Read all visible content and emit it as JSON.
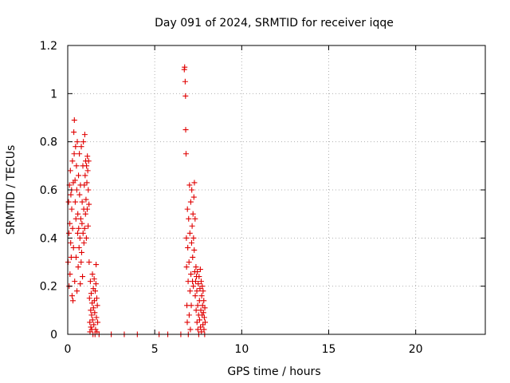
{
  "chart_data": {
    "type": "scatter",
    "title": "Day 091 of 2024, SRMTID for receiver iqqe",
    "xlabel": "GPS time / hours",
    "ylabel": "SRMTID / TECUs",
    "xlim": [
      0,
      24
    ],
    "ylim": [
      0,
      1.2
    ],
    "xticks": [
      0,
      5,
      10,
      15,
      20
    ],
    "xtick_labels": [
      "0",
      "5",
      "10",
      "15",
      "20"
    ],
    "yticks": [
      0,
      0.2,
      0.4,
      0.6,
      0.8,
      1.0,
      1.2
    ],
    "ytick_labels": [
      "0",
      "0.2",
      "0.4",
      "0.6",
      "0.8",
      "1",
      "1.2"
    ],
    "grid": true,
    "marker": "+",
    "colors": {
      "series": "#e00000",
      "grid": "#b0b0b0"
    },
    "series": [
      {
        "name": "SRMTID",
        "points": [
          [
            0.02,
            0.3
          ],
          [
            0.05,
            0.55
          ],
          [
            0.07,
            0.42
          ],
          [
            0.08,
            0.2
          ],
          [
            0.1,
            0.62
          ],
          [
            0.12,
            0.46
          ],
          [
            0.13,
            0.25
          ],
          [
            0.15,
            0.68
          ],
          [
            0.17,
            0.38
          ],
          [
            0.18,
            0.58
          ],
          [
            0.2,
            0.32
          ],
          [
            0.22,
            0.6
          ],
          [
            0.23,
            0.52
          ],
          [
            0.25,
            0.16
          ],
          [
            0.27,
            0.72
          ],
          [
            0.28,
            0.44
          ],
          [
            0.3,
            0.14
          ],
          [
            0.32,
            0.63
          ],
          [
            0.33,
            0.36
          ],
          [
            0.35,
            0.84
          ],
          [
            0.37,
            0.75
          ],
          [
            0.38,
            0.89
          ],
          [
            0.4,
            0.22
          ],
          [
            0.42,
            0.64
          ],
          [
            0.43,
            0.55
          ],
          [
            0.45,
            0.78
          ],
          [
            0.47,
            0.48
          ],
          [
            0.48,
            0.32
          ],
          [
            0.5,
            0.7
          ],
          [
            0.52,
            0.6
          ],
          [
            0.53,
            0.18
          ],
          [
            0.55,
            0.8
          ],
          [
            0.57,
            0.42
          ],
          [
            0.58,
            0.5
          ],
          [
            0.6,
            0.28
          ],
          [
            0.62,
            0.66
          ],
          [
            0.63,
            0.44
          ],
          [
            0.65,
            0.36
          ],
          [
            0.67,
            0.75
          ],
          [
            0.68,
            0.58
          ],
          [
            0.7,
            0.4
          ],
          [
            0.72,
            0.21
          ],
          [
            0.73,
            0.62
          ],
          [
            0.75,
            0.48
          ],
          [
            0.77,
            0.3
          ],
          [
            0.78,
            0.78
          ],
          [
            0.8,
            0.34
          ],
          [
            0.82,
            0.46
          ],
          [
            0.83,
            0.55
          ],
          [
            0.85,
            0.24
          ],
          [
            0.87,
            0.7
          ],
          [
            0.88,
            0.42
          ],
          [
            0.9,
            0.8
          ],
          [
            0.92,
            0.52
          ],
          [
            0.93,
            0.38
          ],
          [
            0.95,
            0.62
          ],
          [
            0.97,
            0.44
          ],
          [
            0.98,
            0.83
          ],
          [
            1.0,
            0.66
          ],
          [
            1.02,
            0.5
          ],
          [
            1.03,
            0.72
          ],
          [
            1.05,
            0.56
          ],
          [
            1.07,
            0.4
          ],
          [
            1.08,
            0.7
          ],
          [
            1.1,
            0.63
          ],
          [
            1.12,
            0.52
          ],
          [
            1.13,
            0.74
          ],
          [
            1.15,
            0.68
          ],
          [
            1.17,
            0.45
          ],
          [
            1.18,
            0.6
          ],
          [
            1.2,
            0.72
          ],
          [
            1.22,
            0.54
          ],
          [
            1.23,
            0.3
          ],
          [
            1.25,
            0.15
          ],
          [
            1.27,
            0.05
          ],
          [
            1.28,
            0.01
          ],
          [
            1.3,
            0.22
          ],
          [
            1.32,
            0.1
          ],
          [
            1.33,
            0.03
          ],
          [
            1.35,
            0.17
          ],
          [
            1.37,
            0.08
          ],
          [
            1.38,
            0.02
          ],
          [
            1.4,
            0.13
          ],
          [
            1.42,
            0.25
          ],
          [
            1.43,
            0.06
          ],
          [
            1.45,
            0.0
          ],
          [
            1.47,
            0.19
          ],
          [
            1.48,
            0.11
          ],
          [
            1.5,
            0.04
          ],
          [
            1.52,
            0.23
          ],
          [
            1.53,
            0.14
          ],
          [
            1.55,
            0.09
          ],
          [
            1.57,
            0.0
          ],
          [
            1.58,
            0.18
          ],
          [
            1.6,
            0.02
          ],
          [
            1.62,
            0.21
          ],
          [
            1.63,
            0.29
          ],
          [
            1.65,
            0.07
          ],
          [
            1.67,
            0.15
          ],
          [
            1.68,
            0.01
          ],
          [
            1.7,
            0.12
          ],
          [
            1.72,
            0.05
          ],
          [
            1.8,
            0.0
          ],
          [
            2.5,
            0.0
          ],
          [
            3.25,
            0.0
          ],
          [
            4.0,
            0.0
          ],
          [
            5.25,
            0.0
          ],
          [
            5.75,
            0.0
          ],
          [
            6.5,
            0.0
          ],
          [
            6.7,
            1.1
          ],
          [
            6.72,
            1.11
          ],
          [
            6.75,
            1.05
          ],
          [
            6.77,
            0.99
          ],
          [
            6.78,
            0.85
          ],
          [
            6.8,
            0.75
          ],
          [
            6.82,
            0.4
          ],
          [
            6.83,
            0.28
          ],
          [
            6.85,
            0.12
          ],
          [
            6.87,
            0.05
          ],
          [
            6.88,
            0.52
          ],
          [
            6.9,
            0.36
          ],
          [
            6.92,
            0.22
          ],
          [
            6.93,
            0.0
          ],
          [
            6.95,
            0.48
          ],
          [
            6.97,
            0.3
          ],
          [
            6.98,
            0.08
          ],
          [
            7.0,
            0.62
          ],
          [
            7.02,
            0.42
          ],
          [
            7.03,
            0.18
          ],
          [
            7.05,
            0.02
          ],
          [
            7.07,
            0.55
          ],
          [
            7.08,
            0.25
          ],
          [
            7.1,
            0.12
          ],
          [
            7.12,
            0.38
          ],
          [
            7.13,
            0.6
          ],
          [
            7.15,
            0.45
          ],
          [
            7.17,
            0.22
          ],
          [
            7.18,
            0.32
          ],
          [
            7.2,
            0.5
          ],
          [
            7.22,
            0.2
          ],
          [
            7.23,
            0.4
          ],
          [
            7.25,
            0.57
          ],
          [
            7.27,
            0.35
          ],
          [
            7.28,
            0.63
          ],
          [
            7.3,
            0.26
          ],
          [
            7.32,
            0.48
          ],
          [
            7.33,
            0.16
          ],
          [
            7.35,
            0.22
          ],
          [
            7.37,
            0.28
          ],
          [
            7.38,
            0.1
          ],
          [
            7.4,
            0.24
          ],
          [
            7.42,
            0.18
          ],
          [
            7.43,
            0.05
          ],
          [
            7.45,
            0.26
          ],
          [
            7.47,
            0.12
          ],
          [
            7.48,
            0.02
          ],
          [
            7.5,
            0.21
          ],
          [
            7.52,
            0.08
          ],
          [
            7.53,
            0.0
          ],
          [
            7.55,
            0.24
          ],
          [
            7.57,
            0.14
          ],
          [
            7.58,
            0.06
          ],
          [
            7.6,
            0.19
          ],
          [
            7.62,
            0.27
          ],
          [
            7.63,
            0.03
          ],
          [
            7.65,
            0.1
          ],
          [
            7.67,
            0.22
          ],
          [
            7.68,
            0.01
          ],
          [
            7.7,
            0.16
          ],
          [
            7.72,
            0.08
          ],
          [
            7.73,
            0.2
          ],
          [
            7.75,
            0.12
          ],
          [
            7.77,
            0.04
          ],
          [
            7.78,
            0.18
          ],
          [
            7.8,
            0.09
          ],
          [
            7.82,
            0.14
          ],
          [
            7.83,
            0.02
          ],
          [
            7.85,
            0.07
          ],
          [
            7.87,
            0.0
          ],
          [
            7.88,
            0.11
          ],
          [
            7.9,
            0.05
          ]
        ]
      }
    ]
  }
}
